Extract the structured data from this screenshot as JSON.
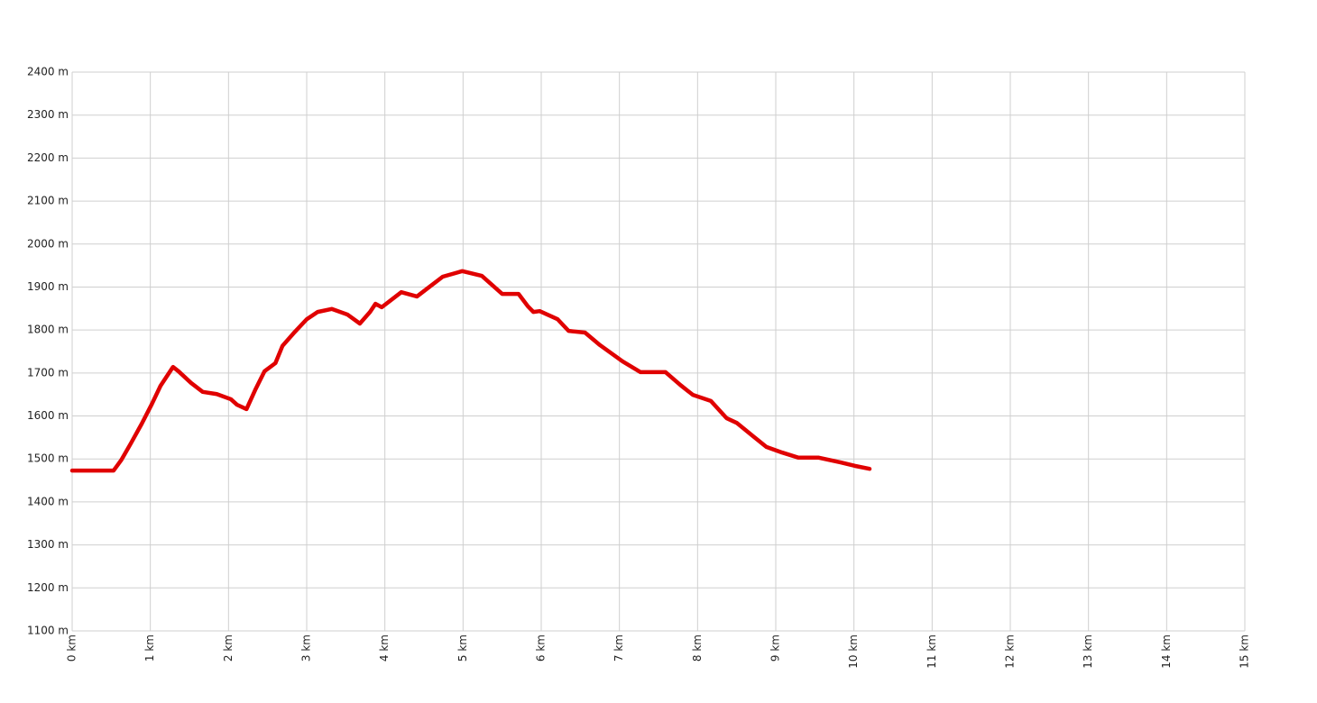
{
  "chart_data": {
    "type": "line",
    "x": [
      0,
      0.53,
      0.63,
      0.75,
      0.89,
      1.02,
      1.13,
      1.29,
      1.36,
      1.52,
      1.67,
      1.85,
      2.03,
      2.11,
      2.23,
      2.34,
      2.46,
      2.6,
      2.69,
      2.83,
      3.0,
      3.14,
      3.32,
      3.52,
      3.68,
      3.81,
      3.88,
      3.96,
      4.21,
      4.41,
      4.56,
      4.74,
      4.99,
      5.24,
      5.5,
      5.71,
      5.83,
      5.9,
      5.98,
      6.21,
      6.35,
      6.56,
      6.75,
      7.04,
      7.27,
      7.59,
      7.78,
      7.94,
      8.17,
      8.37,
      8.5,
      8.71,
      8.88,
      9.08,
      9.29,
      9.55,
      9.83,
      10.01,
      10.2
    ],
    "series": [
      {
        "color": "#e00000",
        "values": [
          1473,
          1473,
          1498,
          1536,
          1582,
          1628,
          1670,
          1714,
          1704,
          1677,
          1656,
          1651,
          1639,
          1626,
          1616,
          1660,
          1704,
          1723,
          1763,
          1792,
          1825,
          1842,
          1849,
          1836,
          1815,
          1842,
          1861,
          1853,
          1888,
          1878,
          1899,
          1924,
          1937,
          1926,
          1884,
          1884,
          1855,
          1842,
          1844,
          1825,
          1798,
          1794,
          1765,
          1727,
          1702,
          1702,
          1672,
          1649,
          1635,
          1595,
          1584,
          1553,
          1528,
          1515,
          1503,
          1503,
          1492,
          1484,
          1477
        ]
      }
    ],
    "xlim": [
      0,
      15
    ],
    "xticks": [
      {
        "value": 0,
        "label": "0 km"
      },
      {
        "value": 1,
        "label": "1 km"
      },
      {
        "value": 2,
        "label": "2 km"
      },
      {
        "value": 3,
        "label": "3 km"
      },
      {
        "value": 4,
        "label": "4 km"
      },
      {
        "value": 5,
        "label": "5 km"
      },
      {
        "value": 6,
        "label": "6 km"
      },
      {
        "value": 7,
        "label": "7 km"
      },
      {
        "value": 8,
        "label": "8 km"
      },
      {
        "value": 9,
        "label": "9 km"
      },
      {
        "value": 10,
        "label": "10 km"
      },
      {
        "value": 11,
        "label": "11 km"
      },
      {
        "value": 12,
        "label": "12 km"
      },
      {
        "value": 13,
        "label": "13 km"
      },
      {
        "value": 14,
        "label": "14 km"
      },
      {
        "value": 15,
        "label": "15 km"
      }
    ],
    "ylim": [
      1100,
      2400
    ],
    "yticks": [
      {
        "value": 1100,
        "label": "1100 m"
      },
      {
        "value": 1200,
        "label": "1200 m"
      },
      {
        "value": 1300,
        "label": "1300 m"
      },
      {
        "value": 1400,
        "label": "1400 m"
      },
      {
        "value": 1500,
        "label": "1500 m"
      },
      {
        "value": 1600,
        "label": "1600 m"
      },
      {
        "value": 1700,
        "label": "1700 m"
      },
      {
        "value": 1800,
        "label": "1800 m"
      },
      {
        "value": 1900,
        "label": "1900 m"
      },
      {
        "value": 2000,
        "label": "2000 m"
      },
      {
        "value": 2100,
        "label": "2100 m"
      },
      {
        "value": 2200,
        "label": "2200 m"
      },
      {
        "value": 2300,
        "label": "2300 m"
      },
      {
        "value": 2400,
        "label": "2400 m"
      }
    ],
    "grid": true
  }
}
